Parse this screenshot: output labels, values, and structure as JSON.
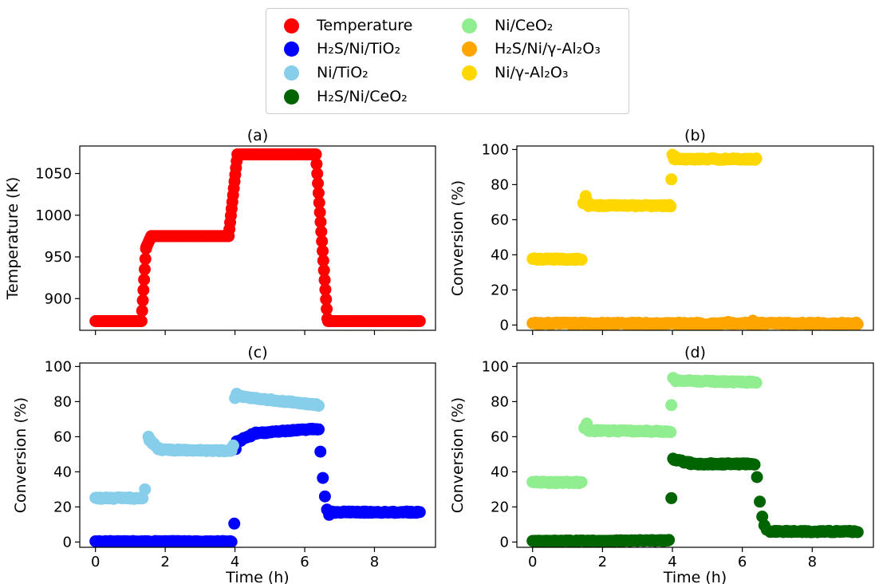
{
  "legend": [
    {
      "label": "Temperature",
      "color": "#ff0000"
    },
    {
      "label": "H₂S/Ni/TiO₂",
      "color": "#0000ff"
    },
    {
      "label": "Ni/TiO₂",
      "color": "#87ceeb"
    },
    {
      "label": "H₂S/Ni/CeO₂",
      "color": "#006400"
    },
    {
      "label": "Ni/CeO₂",
      "color": "#90ee90"
    },
    {
      "label": "H₂S/Ni/γ-Al₂O₃",
      "color": "#ffa500"
    },
    {
      "label": "Ni/γ-Al₂O₃",
      "color": "#ffd700"
    }
  ],
  "chart_data": [
    {
      "panel": "(a)",
      "type": "scatter",
      "title": "(a)",
      "xlabel": "",
      "ylabel": "Temperature (K)",
      "xlim": [
        -0.45,
        9.75
      ],
      "ylim": [
        862,
        1083
      ],
      "xticks": [
        0,
        2,
        4,
        6,
        8
      ],
      "xtick_labels_shown": false,
      "yticks": [
        900,
        950,
        1000,
        1050
      ],
      "series": [
        {
          "name": "Temperature",
          "color": "#ff0000",
          "segments": [
            {
              "x0": 0.0,
              "x1": 1.3,
              "y0": 873,
              "y1": 873,
              "n": 40,
              "noise": 0
            },
            {
              "x0": 1.32,
              "x1": 1.45,
              "y0": 873,
              "y1": 960,
              "n": 8,
              "noise": 0
            },
            {
              "x0": 1.46,
              "x1": 1.6,
              "y0": 962,
              "y1": 975,
              "n": 6,
              "noise": 0
            },
            {
              "x0": 1.62,
              "x1": 3.8,
              "y0": 975,
              "y1": 975,
              "n": 60,
              "noise": 0
            },
            {
              "x0": 3.82,
              "x1": 4.05,
              "y0": 975,
              "y1": 1065,
              "n": 12,
              "noise": 0
            },
            {
              "x0": 4.07,
              "x1": 6.3,
              "y0": 1073,
              "y1": 1073,
              "n": 60,
              "noise": 0
            },
            {
              "x0": 6.32,
              "x1": 6.65,
              "y0": 1073,
              "y1": 876,
              "n": 18,
              "noise": 0
            },
            {
              "x0": 6.67,
              "x1": 9.3,
              "y0": 873,
              "y1": 873,
              "n": 70,
              "noise": 0
            }
          ]
        }
      ]
    },
    {
      "panel": "(b)",
      "type": "scatter",
      "title": "(b)",
      "xlabel": "",
      "ylabel": "Conversion (%)",
      "xlim": [
        -0.45,
        9.75
      ],
      "ylim": [
        -3,
        102
      ],
      "xticks": [
        0,
        2,
        4,
        6,
        8
      ],
      "xtick_labels_shown": false,
      "yticks": [
        0,
        20,
        40,
        60,
        80,
        100
      ],
      "series": [
        {
          "name": "H₂S/Ni/γ-Al₂O₃",
          "color": "#ffa500",
          "segments": [
            {
              "x0": 0.0,
              "x1": 9.3,
              "y0": 0.8,
              "y1": 0.8,
              "n": 230,
              "noise": 0.6
            }
          ],
          "points": [
            [
              6.3,
              2.5
            ],
            [
              5.6,
              1.8
            ]
          ]
        },
        {
          "name": "Ni/γ-Al₂O₃",
          "color": "#ffd700",
          "segments": [
            {
              "x0": 0.0,
              "x1": 1.4,
              "y0": 37.5,
              "y1": 37.5,
              "n": 40,
              "noise": 0.5
            },
            {
              "x0": 1.45,
              "x1": 1.6,
              "y0": 70,
              "y1": 70,
              "n": 5,
              "noise": 1.5
            },
            {
              "x0": 1.6,
              "x1": 3.95,
              "y0": 68,
              "y1": 68,
              "n": 65,
              "noise": 0.4
            },
            {
              "x0": 4.05,
              "x1": 6.4,
              "y0": 94.5,
              "y1": 94.5,
              "n": 65,
              "noise": 0.4
            }
          ],
          "points": [
            [
              1.52,
              73.5
            ],
            [
              3.97,
              83
            ],
            [
              4.0,
              97
            ],
            [
              4.08,
              96
            ]
          ]
        }
      ]
    },
    {
      "panel": "(c)",
      "type": "scatter",
      "title": "(c)",
      "xlabel": "Time (h)",
      "ylabel": "Conversion (%)",
      "xlim": [
        -0.45,
        9.75
      ],
      "ylim": [
        -3,
        102
      ],
      "xticks": [
        0,
        2,
        4,
        6,
        8
      ],
      "xtick_labels_shown": true,
      "yticks": [
        0,
        20,
        40,
        60,
        80,
        100
      ],
      "series": [
        {
          "name": "H₂S/Ni/TiO₂",
          "color": "#0000ff",
          "segments": [
            {
              "x0": 0.0,
              "x1": 3.9,
              "y0": 0.3,
              "y1": 0.3,
              "n": 110,
              "noise": 0.3
            },
            {
              "x0": 4.05,
              "x1": 4.6,
              "y0": 57,
              "y1": 62,
              "n": 15,
              "noise": 0.5
            },
            {
              "x0": 4.6,
              "x1": 6.4,
              "y0": 62,
              "y1": 64.5,
              "n": 50,
              "noise": 0.4
            },
            {
              "x0": 6.75,
              "x1": 9.3,
              "y0": 17,
              "y1": 17,
              "n": 75,
              "noise": 0.4
            }
          ],
          "points": [
            [
              3.98,
              10.5
            ],
            [
              4.02,
              53
            ],
            [
              6.45,
              51.5
            ],
            [
              6.52,
              36.5
            ],
            [
              6.58,
              26
            ],
            [
              6.64,
              18.5
            ],
            [
              6.7,
              15.5
            ]
          ]
        },
        {
          "name": "Ni/TiO₂",
          "color": "#87ceeb",
          "segments": [
            {
              "x0": 0.0,
              "x1": 1.35,
              "y0": 25,
              "y1": 25,
              "n": 40,
              "noise": 0.5
            },
            {
              "x0": 1.55,
              "x1": 1.8,
              "y0": 58,
              "y1": 54,
              "n": 7,
              "noise": 0.6
            },
            {
              "x0": 1.8,
              "x1": 3.9,
              "y0": 52.5,
              "y1": 52,
              "n": 60,
              "noise": 0.4
            },
            {
              "x0": 4.1,
              "x1": 6.4,
              "y0": 83,
              "y1": 78,
              "n": 65,
              "noise": 0.4
            }
          ],
          "points": [
            [
              1.42,
              30
            ],
            [
              1.52,
              60
            ],
            [
              3.95,
              55
            ],
            [
              4.0,
              82
            ],
            [
              4.05,
              84.5
            ]
          ]
        }
      ]
    },
    {
      "panel": "(d)",
      "type": "scatter",
      "title": "(d)",
      "xlabel": "Time (h)",
      "ylabel": "Conversion (%)",
      "xlim": [
        -0.45,
        9.75
      ],
      "ylim": [
        -3,
        102
      ],
      "xticks": [
        0,
        2,
        4,
        6,
        8
      ],
      "xtick_labels_shown": true,
      "yticks": [
        0,
        20,
        40,
        60,
        80,
        100
      ],
      "series": [
        {
          "name": "H₂S/Ni/CeO₂",
          "color": "#006400",
          "segments": [
            {
              "x0": 0.0,
              "x1": 3.9,
              "y0": 0.5,
              "y1": 0.9,
              "n": 110,
              "noise": 0.3
            },
            {
              "x0": 4.05,
              "x1": 4.5,
              "y0": 47,
              "y1": 45,
              "n": 12,
              "noise": 0.5
            },
            {
              "x0": 4.5,
              "x1": 6.35,
              "y0": 44.5,
              "y1": 44.5,
              "n": 55,
              "noise": 0.4
            },
            {
              "x0": 6.8,
              "x1": 9.3,
              "y0": 6,
              "y1": 6,
              "n": 75,
              "noise": 0.4
            }
          ],
          "points": [
            [
              3.97,
              25
            ],
            [
              4.02,
              47.5
            ],
            [
              6.42,
              37
            ],
            [
              6.5,
              23
            ],
            [
              6.57,
              14.5
            ],
            [
              6.63,
              9.5
            ],
            [
              6.7,
              7
            ]
          ]
        },
        {
          "name": "Ni/CeO₂",
          "color": "#90ee90",
          "segments": [
            {
              "x0": 0.0,
              "x1": 1.4,
              "y0": 34,
              "y1": 34,
              "n": 40,
              "noise": 0.5
            },
            {
              "x0": 1.6,
              "x1": 3.95,
              "y0": 63.5,
              "y1": 63,
              "n": 65,
              "noise": 0.4
            },
            {
              "x0": 4.1,
              "x1": 6.4,
              "y0": 92,
              "y1": 91,
              "n": 65,
              "noise": 0.4
            }
          ],
          "points": [
            [
              1.48,
              65
            ],
            [
              1.55,
              67.5
            ],
            [
              3.97,
              78
            ],
            [
              4.02,
              93.5
            ]
          ]
        }
      ]
    }
  ]
}
